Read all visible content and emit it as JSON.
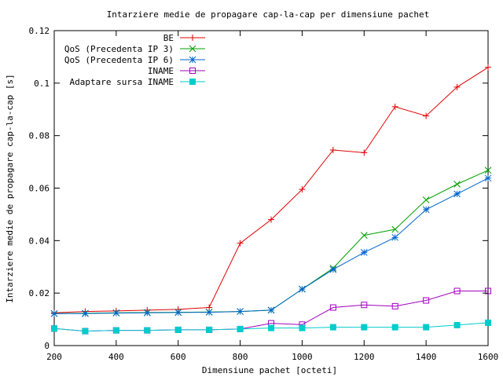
{
  "chart_data": {
    "type": "line",
    "title": "Intarziere medie de propagare cap-la-cap per dimensiune pachet",
    "xlabel": "Dimensiune pachet [octeti]",
    "ylabel": "Intarziere medie de propagare cap-la-cap [s]",
    "xlim": [
      200,
      1600
    ],
    "ylim": [
      0,
      0.12
    ],
    "xticks": [
      200,
      400,
      600,
      800,
      1000,
      1200,
      1400,
      1600
    ],
    "yticks": [
      0,
      0.02,
      0.04,
      0.06,
      0.08,
      0.1,
      0.12
    ],
    "xtick_labels": [
      "200",
      "400",
      "600",
      "800",
      "1000",
      "1200",
      "1400",
      "1600"
    ],
    "ytick_labels": [
      "0",
      "0.02",
      "0.04",
      "0.06",
      "0.08",
      "0.1",
      "0.12"
    ],
    "grid": false,
    "legend_position": "top-left",
    "x": [
      200,
      300,
      400,
      500,
      600,
      700,
      800,
      900,
      1000,
      1100,
      1200,
      1300,
      1400,
      1500,
      1600
    ],
    "series": [
      {
        "name": "BE",
        "color": "#e00000",
        "marker": "plus",
        "values": [
          0.0125,
          0.013,
          0.0132,
          0.0135,
          0.0138,
          0.0145,
          0.039,
          0.048,
          0.0595,
          0.0745,
          0.0735,
          0.091,
          0.0875,
          0.0985,
          0.106
        ]
      },
      {
        "name": "QoS (Precedenta IP 3)",
        "color": "#00a000",
        "marker": "cross",
        "values": [
          0.0122,
          0.0123,
          0.0125,
          0.0126,
          0.0127,
          0.0128,
          0.013,
          0.0135,
          0.0215,
          0.0295,
          0.042,
          0.0443,
          0.0555,
          0.0615,
          0.0668
        ]
      },
      {
        "name": "QoS (Precedenta IP 6)",
        "color": "#0066cc",
        "marker": "star",
        "values": [
          0.0122,
          0.0122,
          0.0124,
          0.0125,
          0.0126,
          0.0127,
          0.013,
          0.0135,
          0.0215,
          0.029,
          0.0355,
          0.0412,
          0.0518,
          0.0578,
          0.0638
        ]
      },
      {
        "name": "INAME",
        "color": "#a000c0",
        "marker": "square-open",
        "values": [
          0.0065,
          0.0055,
          0.0058,
          0.0058,
          0.006,
          0.006,
          0.0063,
          0.0085,
          0.008,
          0.0145,
          0.0155,
          0.015,
          0.0172,
          0.0208,
          0.0208
        ]
      },
      {
        "name": "Adaptare sursa INAME",
        "color": "#00cccc",
        "marker": "square-filled",
        "values": [
          0.0065,
          0.0055,
          0.0058,
          0.0058,
          0.006,
          0.006,
          0.0063,
          0.0067,
          0.0067,
          0.007,
          0.007,
          0.007,
          0.007,
          0.0078,
          0.0087
        ]
      }
    ]
  }
}
